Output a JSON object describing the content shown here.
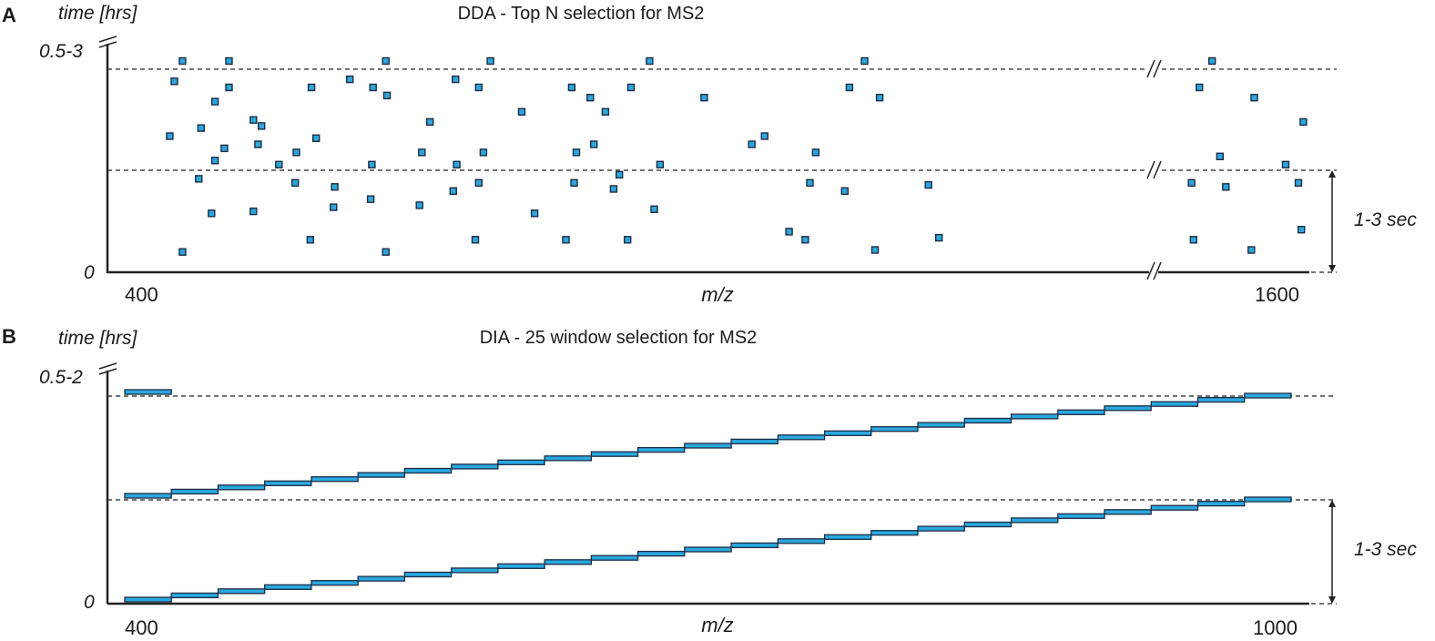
{
  "colors": {
    "marker_fill": "#29a8df",
    "marker_stroke": "#1c2c44",
    "axis": "#222222",
    "text": "#1a1a1a"
  },
  "panel_a": {
    "label": "A",
    "title": "DDA - Top N selection for MS2",
    "y_label": "time [hrs]",
    "y_top_tick": "0.5-3",
    "y_zero_tick": "0",
    "x_label": "m/z",
    "x_min_label": "400",
    "x_max_label": "1600",
    "cycle_label": "1-3 sec"
  },
  "panel_b": {
    "label": "B",
    "title": "DIA - 25 window selection for MS2",
    "y_label": "time [hrs]",
    "y_top_tick": "0.5-2",
    "y_zero_tick": "0",
    "x_label": "m/z",
    "x_min_label": "400",
    "x_max_label": "1000",
    "cycle_label": "1-3 sec"
  },
  "chart_data": [
    {
      "type": "scatter",
      "title": "DDA - Top N selection for MS2",
      "xlabel": "m/z",
      "ylabel": "time [hrs]",
      "x_ticks": [
        "400",
        "1600"
      ],
      "y_ticks": [
        "0",
        "0.5-3"
      ],
      "description": "Precursor ions selected for MS2 per cycle; cycle length 1-3 sec",
      "points": [
        {
          "x": 416,
          "y": 0.1
        },
        {
          "x": 405,
          "y": 0.67
        },
        {
          "x": 409,
          "y": 0.94
        },
        {
          "x": 416,
          "y": 1.04
        },
        {
          "x": 430,
          "y": 0.46
        },
        {
          "x": 432,
          "y": 0.71
        },
        {
          "x": 441,
          "y": 0.29
        },
        {
          "x": 444,
          "y": 0.55
        },
        {
          "x": 444,
          "y": 0.84
        },
        {
          "x": 452,
          "y": 0.61
        },
        {
          "x": 456,
          "y": 0.91
        },
        {
          "x": 456,
          "y": 1.04
        },
        {
          "x": 477,
          "y": 0.3
        },
        {
          "x": 477,
          "y": 0.75
        },
        {
          "x": 481,
          "y": 0.63
        },
        {
          "x": 484,
          "y": 0.72
        },
        {
          "x": 499,
          "y": 0.53
        },
        {
          "x": 513,
          "y": 0.44
        },
        {
          "x": 514,
          "y": 0.59
        },
        {
          "x": 526,
          "y": 0.16
        },
        {
          "x": 527,
          "y": 0.91
        },
        {
          "x": 531,
          "y": 0.66
        },
        {
          "x": 546,
          "y": 0.32
        },
        {
          "x": 547,
          "y": 0.42
        },
        {
          "x": 560,
          "y": 0.95
        },
        {
          "x": 578,
          "y": 0.36
        },
        {
          "x": 579,
          "y": 0.53
        },
        {
          "x": 580,
          "y": 0.91
        },
        {
          "x": 591,
          "y": 0.1
        },
        {
          "x": 591,
          "y": 1.04
        },
        {
          "x": 592,
          "y": 0.87
        },
        {
          "x": 620,
          "y": 0.33
        },
        {
          "x": 622,
          "y": 0.59
        },
        {
          "x": 629,
          "y": 0.74
        },
        {
          "x": 649,
          "y": 0.4
        },
        {
          "x": 652,
          "y": 0.53
        },
        {
          "x": 651,
          "y": 0.95
        },
        {
          "x": 668,
          "y": 0.16
        },
        {
          "x": 671,
          "y": 0.44
        },
        {
          "x": 671,
          "y": 0.91
        },
        {
          "x": 675,
          "y": 0.59
        },
        {
          "x": 681,
          "y": 1.04
        },
        {
          "x": 708,
          "y": 0.79
        },
        {
          "x": 719,
          "y": 0.29
        },
        {
          "x": 746,
          "y": 0.16
        },
        {
          "x": 751,
          "y": 0.91
        },
        {
          "x": 753,
          "y": 0.44
        },
        {
          "x": 755,
          "y": 0.59
        },
        {
          "x": 767,
          "y": 0.86
        },
        {
          "x": 770,
          "y": 0.63
        },
        {
          "x": 780,
          "y": 0.79
        },
        {
          "x": 787,
          "y": 0.41
        },
        {
          "x": 792,
          "y": 0.48
        },
        {
          "x": 799,
          "y": 0.16
        },
        {
          "x": 802,
          "y": 0.91
        },
        {
          "x": 818,
          "y": 1.04
        },
        {
          "x": 822,
          "y": 0.31
        },
        {
          "x": 827,
          "y": 0.53
        },
        {
          "x": 865,
          "y": 0.86
        },
        {
          "x": 906,
          "y": 0.63
        },
        {
          "x": 917,
          "y": 0.67
        },
        {
          "x": 938,
          "y": 0.2
        },
        {
          "x": 952,
          "y": 0.16
        },
        {
          "x": 956,
          "y": 0.44
        },
        {
          "x": 961,
          "y": 0.59
        },
        {
          "x": 986,
          "y": 0.4
        },
        {
          "x": 990,
          "y": 0.91
        },
        {
          "x": 1003,
          "y": 1.04
        },
        {
          "x": 1012,
          "y": 0.11
        },
        {
          "x": 1016,
          "y": 0.86
        },
        {
          "x": 1058,
          "y": 0.43
        },
        {
          "x": 1067,
          "y": 0.17
        },
        {
          "x": 1468,
          "y": 0.44
        },
        {
          "x": 1476,
          "y": 0.91
        },
        {
          "x": 1470,
          "y": 0.16
        },
        {
          "x": 1489,
          "y": 1.04
        },
        {
          "x": 1497,
          "y": 0.57
        },
        {
          "x": 1503,
          "y": 0.42
        },
        {
          "x": 1529,
          "y": 0.11
        },
        {
          "x": 1532,
          "y": 0.86
        },
        {
          "x": 1564,
          "y": 0.53
        },
        {
          "x": 1577,
          "y": 0.44
        },
        {
          "x": 1580,
          "y": 0.21
        },
        {
          "x": 1582,
          "y": 0.74
        }
      ]
    },
    {
      "type": "step",
      "title": "DIA - 25 window selection for MS2",
      "xlabel": "m/z",
      "ylabel": "time [hrs]",
      "x_ticks": [
        "400",
        "1000"
      ],
      "y_ticks": [
        "0",
        "0.5-2"
      ],
      "description": "Fixed isolation windows stepped across m/z each cycle; cycle length 1-3 sec",
      "x_range": [
        400,
        1000
      ],
      "window_count": 25,
      "window_width": 24,
      "cycles": 3
    }
  ]
}
